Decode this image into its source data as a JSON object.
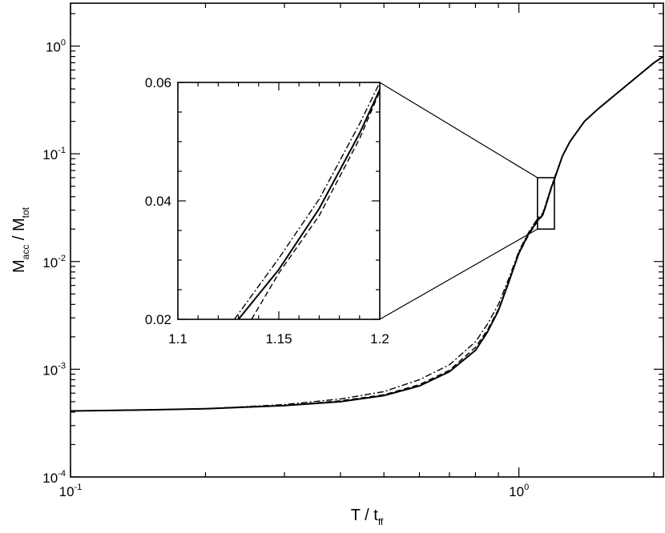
{
  "chart_data": [
    {
      "type": "line",
      "panel": "main",
      "xscale": "log",
      "yscale": "log",
      "xlim": [
        0.1,
        2.1
      ],
      "ylim": [
        0.0001,
        2.5
      ],
      "xlabel": {
        "main": "T / t",
        "sub": "ff"
      },
      "ylabel": {
        "p1": "M",
        "sub1": "acc",
        "p2": " / M",
        "sub2": "tot"
      },
      "x_ticks": [
        {
          "base": "10",
          "exp": "-1",
          "value": 0.1
        },
        {
          "base": "10",
          "exp": "0",
          "value": 1
        }
      ],
      "y_ticks": [
        {
          "base": "10",
          "exp": "-4",
          "value": 0.0001
        },
        {
          "base": "10",
          "exp": "-3",
          "value": 0.001
        },
        {
          "base": "10",
          "exp": "-2",
          "value": 0.01
        },
        {
          "base": "10",
          "exp": "-1",
          "value": 0.1
        },
        {
          "base": "10",
          "exp": "0",
          "value": 1
        }
      ],
      "series": [
        {
          "style": "solid",
          "x": [
            0.1,
            0.15,
            0.2,
            0.3,
            0.4,
            0.5,
            0.6,
            0.7,
            0.8,
            0.85,
            0.9,
            0.95,
            1.0,
            1.05,
            1.1,
            1.13,
            1.15,
            1.18,
            1.2,
            1.25,
            1.3,
            1.4,
            1.5,
            1.7,
            2.0,
            2.1
          ],
          "y": [
            0.00041,
            0.00042,
            0.00043,
            0.00046,
            0.0005,
            0.00057,
            0.0007,
            0.00095,
            0.0015,
            0.0022,
            0.0035,
            0.0065,
            0.012,
            0.018,
            0.024,
            0.027,
            0.034,
            0.048,
            0.058,
            0.095,
            0.13,
            0.2,
            0.26,
            0.4,
            0.7,
            0.8
          ]
        },
        {
          "style": "dashed",
          "x": [
            0.1,
            0.15,
            0.2,
            0.3,
            0.4,
            0.5,
            0.6,
            0.7,
            0.8,
            0.85,
            0.9,
            0.95,
            1.0,
            1.05,
            1.1,
            1.13,
            1.15,
            1.18,
            1.2,
            1.25,
            1.3,
            1.4,
            1.5,
            1.7,
            2.0,
            2.1
          ],
          "y": [
            0.00041,
            0.00042,
            0.00043,
            0.00046,
            0.00051,
            0.00058,
            0.00072,
            0.00098,
            0.0016,
            0.0023,
            0.0036,
            0.0066,
            0.0118,
            0.0175,
            0.0235,
            0.0268,
            0.033,
            0.047,
            0.0585,
            0.095,
            0.13,
            0.2,
            0.26,
            0.4,
            0.7,
            0.8
          ]
        },
        {
          "style": "dashdot",
          "x": [
            0.1,
            0.15,
            0.2,
            0.3,
            0.4,
            0.5,
            0.6,
            0.7,
            0.8,
            0.85,
            0.9,
            0.95,
            1.0,
            1.05,
            1.1,
            1.13,
            1.15,
            1.18,
            1.2,
            1.25,
            1.3,
            1.4,
            1.5,
            1.7,
            2.0,
            2.1
          ],
          "y": [
            0.00041,
            0.00042,
            0.00043,
            0.00047,
            0.00053,
            0.00062,
            0.0008,
            0.0011,
            0.0018,
            0.0026,
            0.004,
            0.007,
            0.0125,
            0.0185,
            0.025,
            0.028,
            0.035,
            0.049,
            0.06,
            0.095,
            0.13,
            0.2,
            0.26,
            0.4,
            0.7,
            0.8
          ]
        }
      ]
    },
    {
      "type": "line",
      "panel": "inset",
      "xlim": [
        1.1,
        1.2
      ],
      "ylim": [
        0.02,
        0.06
      ],
      "x_ticks": [
        "1.1",
        "1.15",
        "1.2"
      ],
      "y_ticks": [
        "0.02",
        "0.04",
        "0.06"
      ],
      "series": [
        {
          "style": "solid",
          "x": [
            1.13,
            1.15,
            1.17,
            1.19,
            1.2
          ],
          "y": [
            0.02,
            0.0284,
            0.0387,
            0.0514,
            0.0588
          ]
        },
        {
          "style": "dashed",
          "x": [
            1.1365,
            1.15,
            1.17,
            1.19,
            1.2
          ],
          "y": [
            0.02,
            0.0278,
            0.0375,
            0.0505,
            0.0585
          ]
        },
        {
          "style": "dashdot",
          "x": [
            1.128,
            1.15,
            1.17,
            1.19,
            1.2
          ],
          "y": [
            0.02,
            0.0303,
            0.0403,
            0.053,
            0.06
          ]
        }
      ]
    }
  ]
}
